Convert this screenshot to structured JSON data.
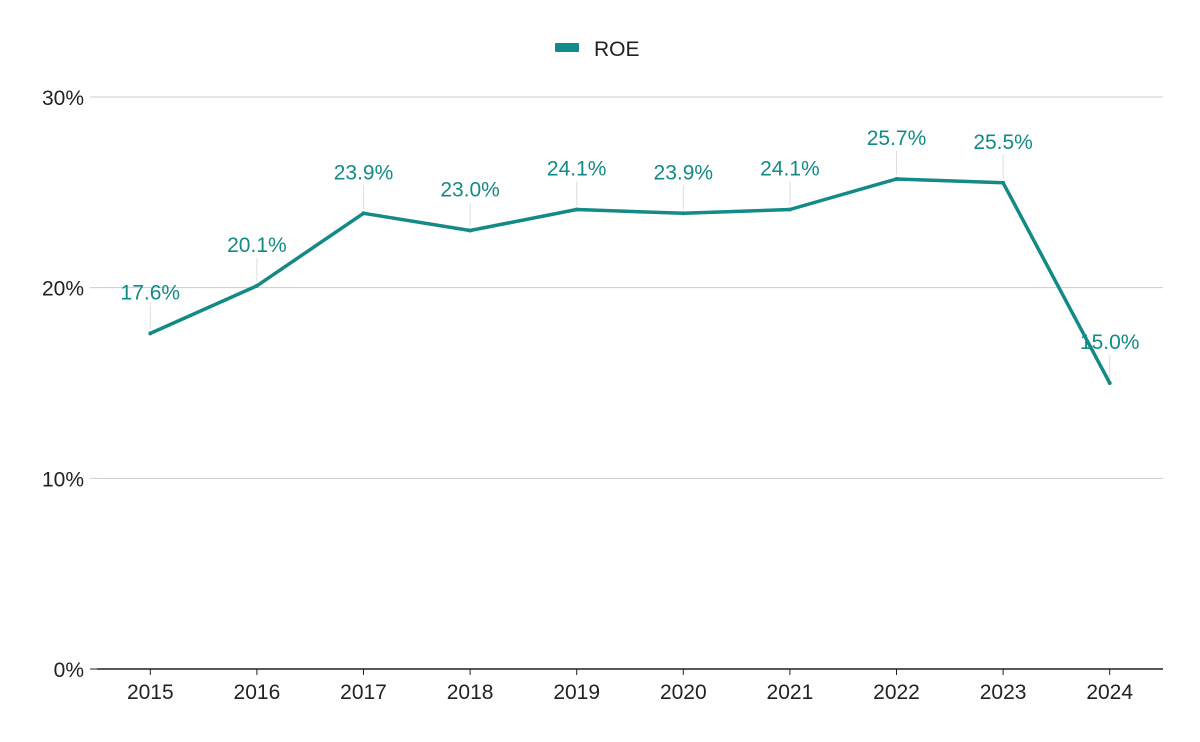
{
  "chart_data": {
    "type": "line",
    "categories": [
      "2015",
      "2016",
      "2017",
      "2018",
      "2019",
      "2020",
      "2021",
      "2022",
      "2023",
      "2024"
    ],
    "series": [
      {
        "name": "ROE",
        "values": [
          17.6,
          20.1,
          23.9,
          23.0,
          24.1,
          23.9,
          24.1,
          25.7,
          25.5,
          15.0
        ],
        "labels": [
          "17.6%",
          "20.1%",
          "23.9%",
          "23.0%",
          "24.1%",
          "23.9%",
          "24.1%",
          "25.7%",
          "25.5%",
          "15.0%"
        ]
      }
    ],
    "yticks": [
      0,
      10,
      20,
      30
    ],
    "ytick_labels": [
      "0%",
      "10%",
      "20%",
      "30%"
    ],
    "ylim": [
      0,
      30
    ],
    "grid": true,
    "legend": "top-center",
    "colors": {
      "series": "#138a86",
      "grid": "#cccccc",
      "axis": "#222222",
      "leader": "#dddddd"
    }
  }
}
